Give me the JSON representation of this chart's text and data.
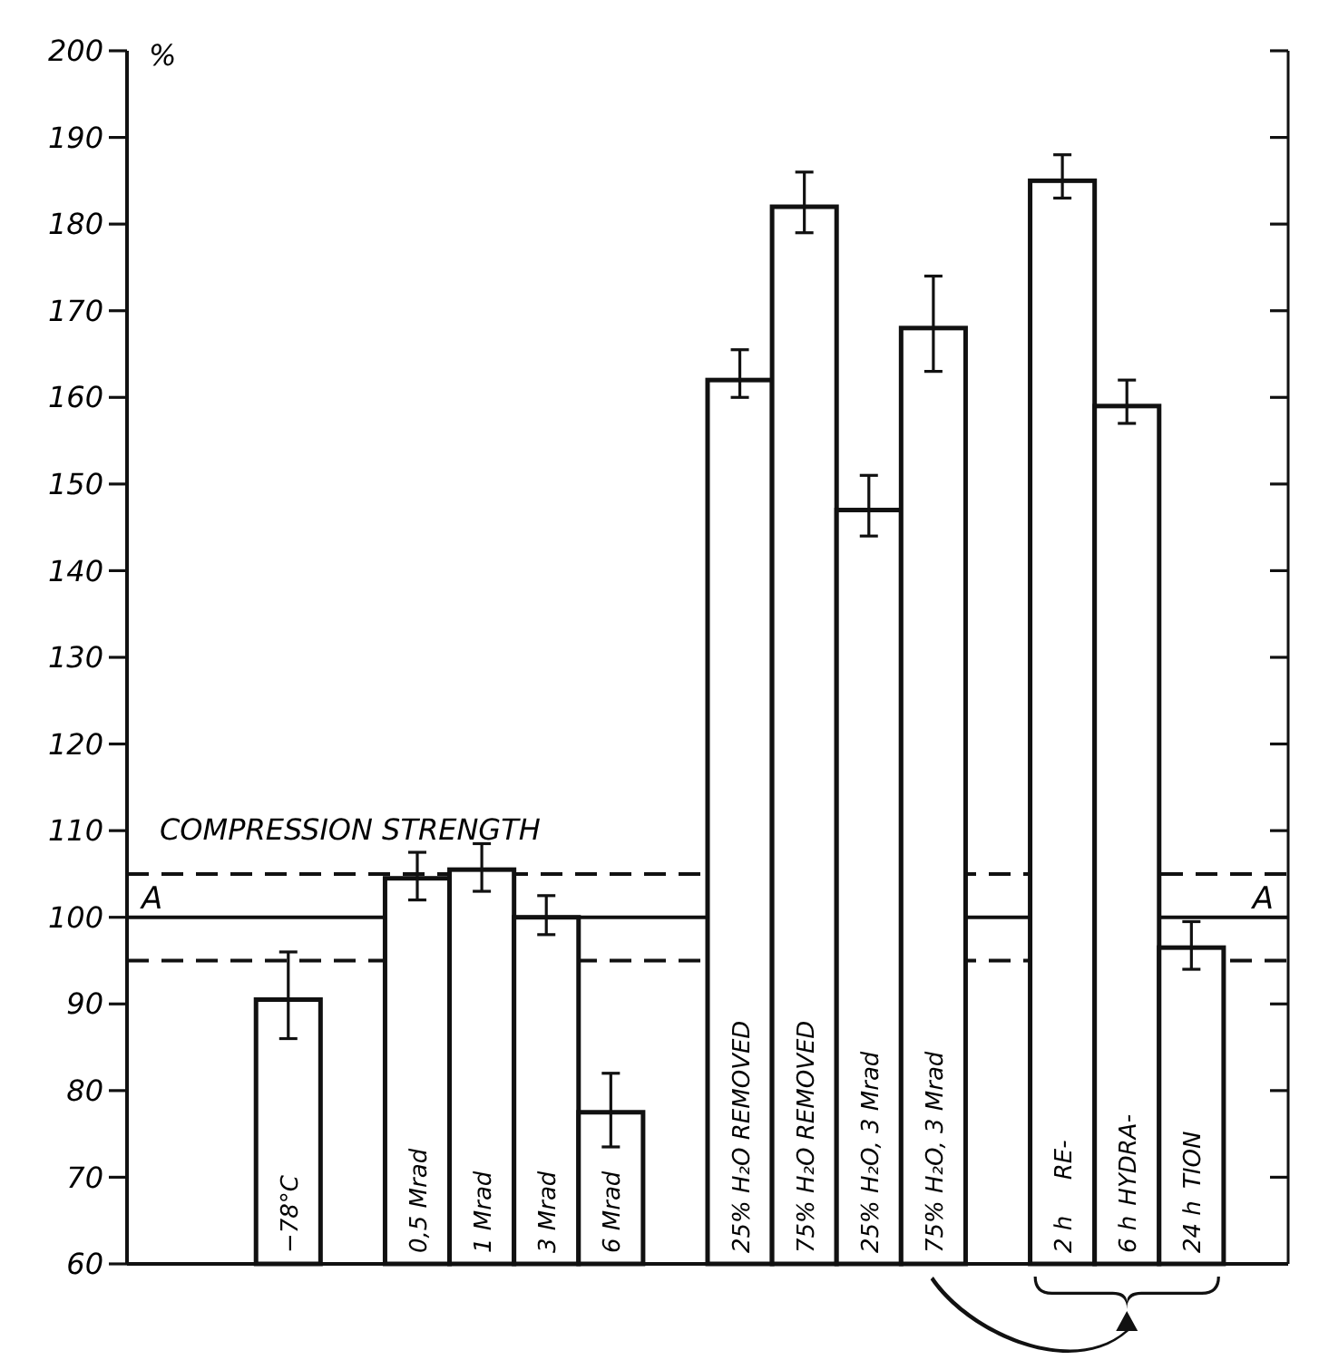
{
  "chart_data": {
    "type": "bar",
    "ylabel": "%",
    "categories": [
      null,
      null,
      "−78°C",
      null,
      "0,5 Mrad",
      "1 Mrad",
      "3 Mrad",
      "6 Mrad",
      null,
      "25% H₂O REMOVED",
      "75% H₂O REMOVED",
      "25% H₂O, 3 Mrad",
      "75% H₂O, 3 Mrad",
      null,
      "2 h",
      "6 h",
      "24 h",
      null
    ],
    "values": [
      null,
      null,
      90.5,
      null,
      104.5,
      105.5,
      100,
      77.5,
      null,
      162,
      182,
      147,
      168,
      null,
      185,
      159,
      96.5,
      null
    ],
    "errors": [
      null,
      null,
      [
        86,
        96
      ],
      null,
      [
        102,
        107.5
      ],
      [
        103,
        108.5
      ],
      [
        98,
        102.5
      ],
      [
        73.5,
        82
      ],
      null,
      [
        160,
        165.5
      ],
      [
        179,
        186
      ],
      [
        144,
        151
      ],
      [
        163,
        174
      ],
      null,
      [
        183,
        188
      ],
      [
        157,
        162
      ],
      [
        94,
        99.5
      ],
      null
    ],
    "color": "#ffffff",
    "ylim": [
      60,
      200
    ],
    "yticks": [
      60,
      70,
      80,
      90,
      100,
      110,
      120,
      130,
      140,
      150,
      160,
      170,
      180,
      190,
      200
    ],
    "ref_lines": [
      {
        "axis": "y",
        "value": 100,
        "label": "A",
        "line_style": "solid"
      },
      {
        "axis": "y",
        "value": 105,
        "line_style": "dashed"
      },
      {
        "axis": "y",
        "value": 95,
        "line_style": "dashed"
      }
    ],
    "annotations": [
      "COMPRESSION STRENGTH",
      "RE-",
      "HYDRA-",
      "TION"
    ]
  }
}
